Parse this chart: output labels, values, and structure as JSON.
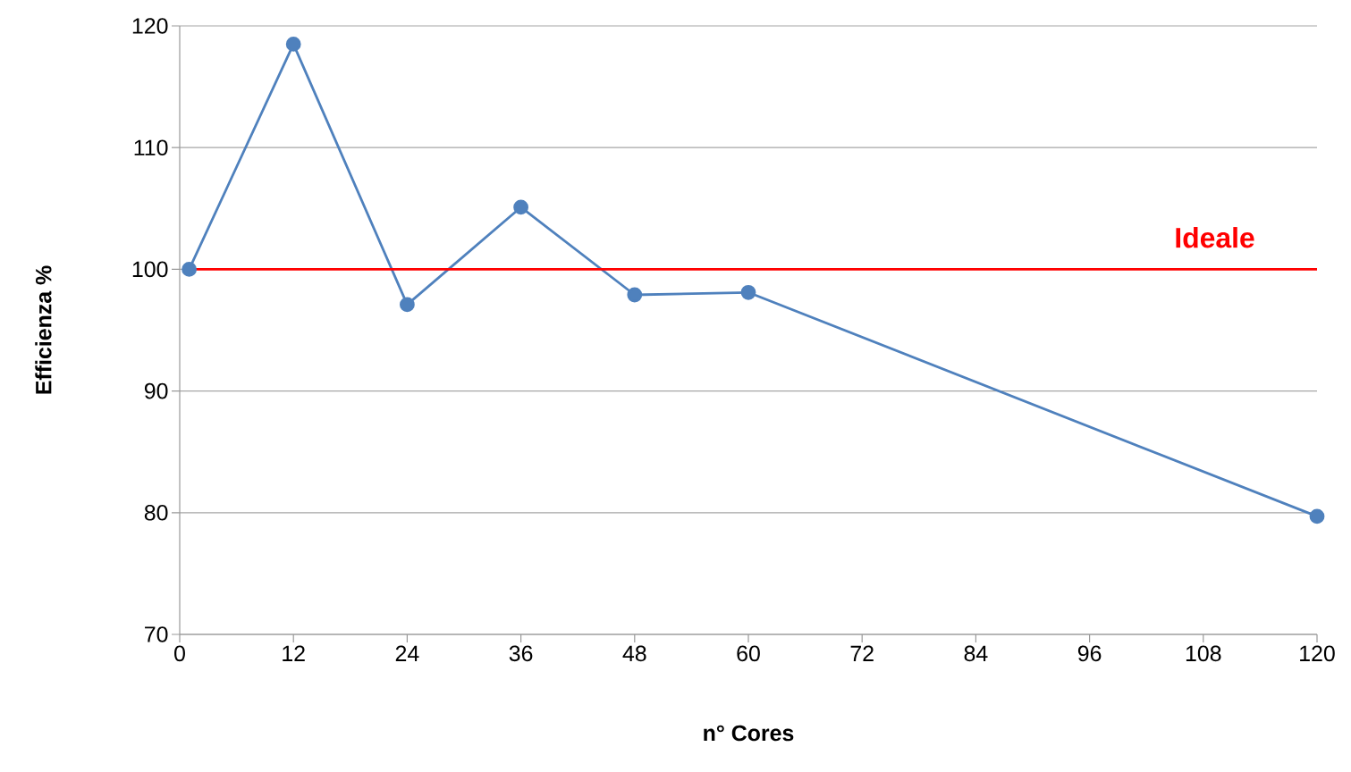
{
  "chart_data": {
    "type": "line",
    "xlabel": "n° Cores",
    "ylabel": "Efficienza %",
    "xlim": [
      0,
      120
    ],
    "xticks": [
      0,
      12,
      24,
      36,
      48,
      60,
      72,
      84,
      96,
      108,
      120
    ],
    "ylim": [
      70,
      120
    ],
    "yticks": [
      70,
      80,
      90,
      100,
      110,
      120
    ],
    "grid": "y",
    "marker": "circle",
    "line_style": "solid",
    "series": [
      {
        "color": "#4f81bd",
        "x": [
          1,
          12,
          24,
          36,
          48,
          60,
          120
        ],
        "values": [
          100,
          118.5,
          97.1,
          105.1,
          97.9,
          98.1,
          79.7
        ]
      },
      {
        "name": "Ideale",
        "color": "#ff0000",
        "marker": "none",
        "x": [
          1,
          120
        ],
        "values": [
          100,
          100
        ]
      }
    ]
  }
}
